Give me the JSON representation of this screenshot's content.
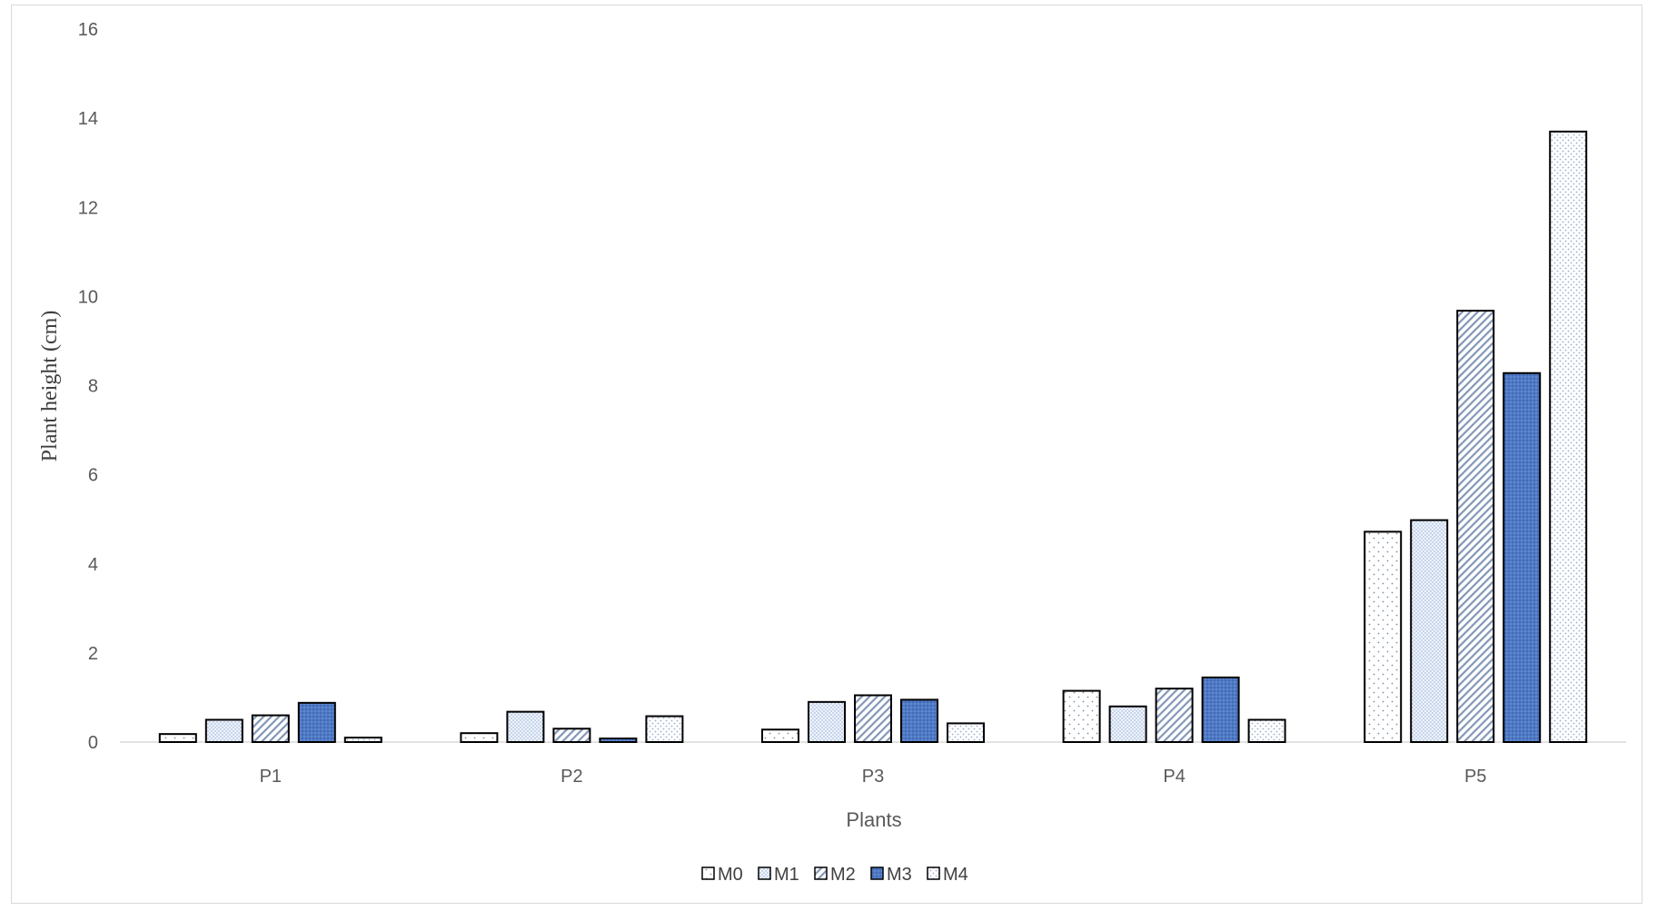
{
  "chart_data": {
    "type": "bar",
    "title": "",
    "xlabel": "Plants",
    "ylabel": "Plant height (cm)",
    "categories": [
      "P1",
      "P2",
      "P3",
      "P4",
      "P5"
    ],
    "ylim": [
      0,
      16
    ],
    "yticks": [
      "0",
      "2",
      "4",
      "6",
      "8",
      "10",
      "12",
      "14",
      "16"
    ],
    "grid": false,
    "legend_position": "bottom",
    "series": [
      {
        "name": "M0",
        "values": [
          0.18,
          0.2,
          0.28,
          1.15,
          4.72
        ],
        "pattern": "dots"
      },
      {
        "name": "M1",
        "values": [
          0.5,
          0.68,
          0.9,
          0.8,
          4.98
        ],
        "pattern": "fine-dots"
      },
      {
        "name": "M2",
        "values": [
          0.6,
          0.3,
          1.05,
          1.2,
          9.68
        ],
        "pattern": "diagonal"
      },
      {
        "name": "M3",
        "values": [
          0.88,
          0.08,
          0.95,
          1.45,
          8.28
        ],
        "pattern": "dense-blue"
      },
      {
        "name": "M4",
        "values": [
          0.1,
          0.58,
          0.42,
          0.5,
          13.7
        ],
        "pattern": "sparse-dots"
      }
    ]
  }
}
